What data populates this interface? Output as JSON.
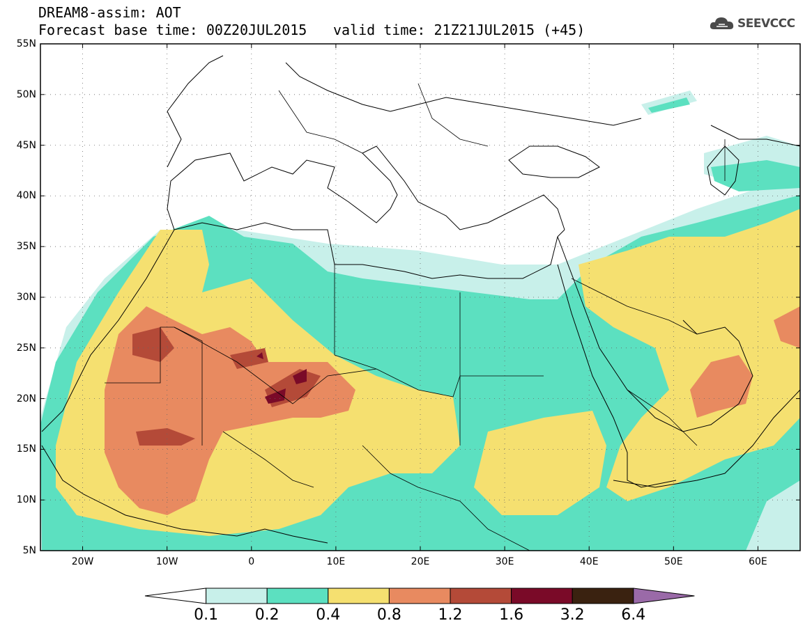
{
  "header": {
    "line1": "DREAM8-assim: AOT",
    "line2": "Forecast base time: 00Z20JUL2015",
    "valid": "valid time: 21Z21JUL2015 (+45)"
  },
  "logo": {
    "text": "SEEVCCC",
    "icon": "cloud-icon"
  },
  "map": {
    "lat_labels": [
      "55N",
      "50N",
      "45N",
      "40N",
      "35N",
      "30N",
      "25N",
      "20N",
      "15N",
      "10N",
      "5N"
    ],
    "lon_labels": [
      "20W",
      "10W",
      "0",
      "10E",
      "20E",
      "30E",
      "40E",
      "50E",
      "60E"
    ],
    "lat_range": [
      5,
      55
    ],
    "lon_range": [
      -25,
      65
    ],
    "grid": true
  },
  "colorbar": {
    "labels": [
      "0.1",
      "0.2",
      "0.4",
      "0.8",
      "1.2",
      "1.6",
      "3.2",
      "6.4"
    ],
    "colors": [
      "#ffffff",
      "#c8f0ea",
      "#5ce0c0",
      "#f5e070",
      "#e88a60",
      "#b44a38",
      "#7a0a28",
      "#3a2210",
      "#9a6aa8"
    ]
  }
}
